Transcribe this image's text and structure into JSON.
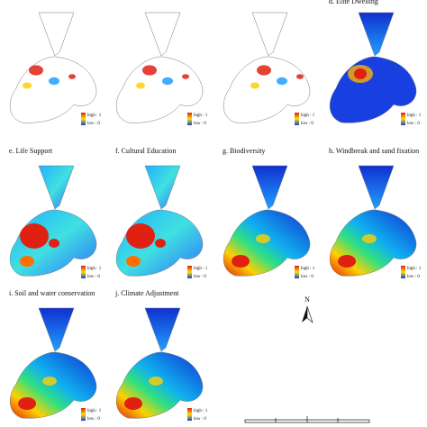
{
  "panels": [
    {
      "label": null
    },
    {
      "label": null
    },
    {
      "label": null
    },
    {
      "label": "d. Elite Dwelling"
    },
    {
      "label": "e. Life Support"
    },
    {
      "label": "f. Cultural Education"
    },
    {
      "label": "g. Biodiversity"
    },
    {
      "label": "h. Windbreak and sand fixation"
    },
    {
      "label": "i. Soil and water conservation"
    },
    {
      "label": "j. Climate Adjustment"
    }
  ],
  "legend": {
    "high": "high : 1",
    "low": "low : 0"
  },
  "north": "N"
}
